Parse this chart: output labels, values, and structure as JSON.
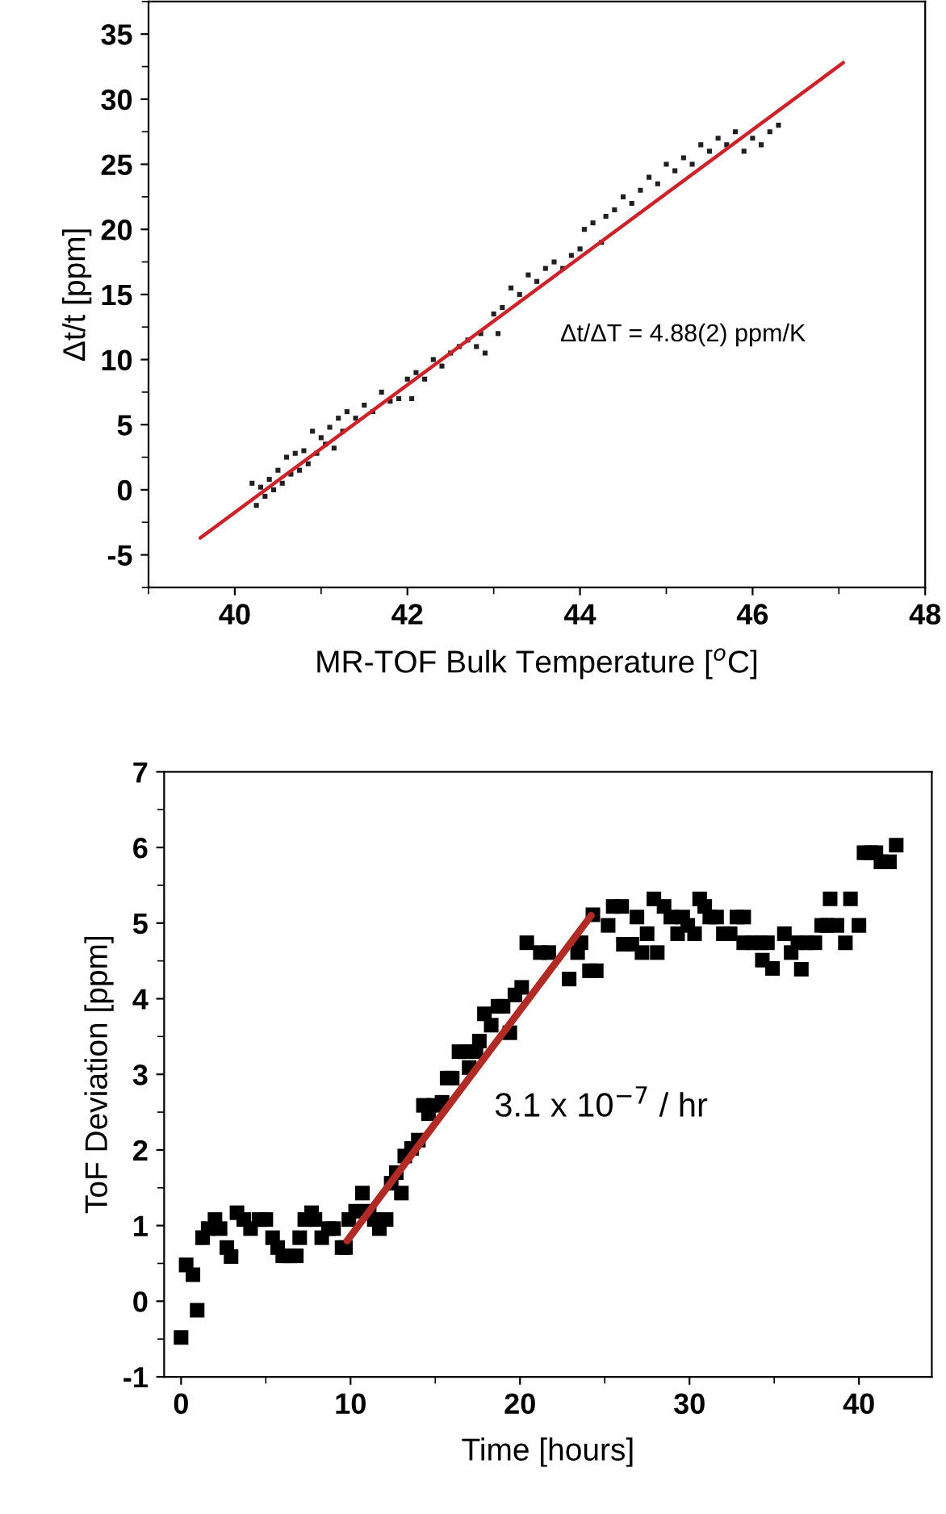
{
  "chart_data": [
    {
      "type": "scatter",
      "xlabel": "MR-TOF Bulk Temperature [$^{o}$C]",
      "ylabel": "Δt/t [ppm]",
      "xlim": [
        39,
        48
      ],
      "ylim": [
        -7.5,
        37.5
      ],
      "xticks": [
        40,
        42,
        44,
        46,
        48
      ],
      "yticks": [
        -5,
        0,
        5,
        10,
        15,
        20,
        25,
        30,
        35
      ],
      "grid": false,
      "annotations": [
        "Δt/ΔT = 4.88(2) ppm/K"
      ],
      "series": [
        {
          "marker": "square",
          "color": "#231f20",
          "x": [
            40.2,
            40.25,
            40.3,
            40.35,
            40.4,
            40.45,
            40.5,
            40.55,
            40.6,
            40.65,
            40.7,
            40.75,
            40.8,
            40.85,
            40.9,
            40.95,
            41.0,
            41.05,
            41.1,
            41.15,
            41.2,
            41.25,
            41.3,
            41.4,
            41.5,
            41.6,
            41.7,
            41.8,
            41.9,
            42.0,
            42.05,
            42.1,
            42.2,
            42.3,
            42.4,
            42.5,
            42.6,
            42.7,
            42.8,
            42.85,
            42.9,
            43.0,
            43.05,
            43.1,
            43.2,
            43.3,
            43.4,
            43.5,
            43.6,
            43.7,
            43.8,
            43.9,
            44.0,
            44.05,
            44.15,
            44.25,
            44.3,
            44.4,
            44.5,
            44.6,
            44.7,
            44.8,
            44.9,
            45.0,
            45.1,
            45.2,
            45.3,
            45.4,
            45.5,
            45.6,
            45.7,
            45.8,
            45.9,
            46.0,
            46.1,
            46.2,
            46.3
          ],
          "values": [
            0.5,
            -1.2,
            0.2,
            -0.5,
            0.8,
            0.0,
            1.5,
            0.5,
            2.5,
            1.2,
            2.8,
            1.5,
            3.0,
            2.0,
            4.5,
            2.8,
            4.0,
            3.5,
            4.8,
            3.2,
            5.5,
            4.5,
            6.0,
            5.5,
            6.5,
            6.0,
            7.5,
            6.8,
            7.0,
            8.5,
            7.0,
            9.0,
            8.5,
            10.0,
            9.5,
            10.5,
            11.0,
            11.5,
            11.0,
            12.0,
            10.5,
            13.5,
            12.0,
            14.0,
            15.5,
            15.0,
            16.5,
            16.0,
            17.0,
            17.5,
            17.0,
            18.0,
            18.5,
            20.0,
            20.5,
            19.0,
            21.0,
            21.5,
            22.5,
            22.0,
            23.0,
            24.0,
            23.5,
            25.0,
            24.5,
            25.5,
            25.0,
            26.5,
            26.0,
            27.0,
            26.5,
            27.5,
            26.0,
            27.0,
            26.5,
            27.5,
            28.0
          ]
        },
        {
          "type": "line",
          "marker": "none",
          "line_style": "solid",
          "color": "#cc2229",
          "x": [
            39.6,
            47.05
          ],
          "values": [
            -3.7,
            32.8
          ]
        }
      ]
    },
    {
      "type": "scatter",
      "xlabel": "Time [hours]",
      "ylabel": "ToF Deviation [ppm]",
      "xlim": [
        -1,
        44.3
      ],
      "ylim": [
        -1,
        7
      ],
      "xticks": [
        0,
        10,
        20,
        30,
        40
      ],
      "yticks": [
        -1,
        0,
        1,
        2,
        3,
        4,
        5,
        6,
        7
      ],
      "grid": false,
      "annotations": [
        "3.1 x 10$^{−7}$ / hr"
      ],
      "series": [
        {
          "marker": "square",
          "color": "#000000",
          "x": [
            0,
            0.3,
            0.7,
            0.95,
            1.27,
            1.6,
            2.0,
            2.3,
            2.7,
            2.95,
            3.3,
            3.7,
            4.1,
            4.6,
            5.0,
            5.4,
            5.7,
            6.0,
            6.4,
            6.8,
            7.0,
            7.3,
            7.7,
            7.9,
            8.3,
            8.7,
            9.0,
            9.5,
            9.7,
            9.9,
            10.3,
            10.7,
            11.1,
            11.4,
            11.7,
            12.1,
            12.4,
            12.7,
            13.0,
            13.2,
            13.6,
            14.0,
            14.3,
            14.6,
            14.9,
            15.4,
            15.7,
            16.0,
            16.4,
            16.8,
            17.0,
            17.4,
            17.6,
            17.9,
            18.3,
            18.7,
            19.0,
            19.4,
            19.7,
            20.1,
            20.4,
            21.2,
            21.7,
            22.9,
            23.4,
            23.6,
            24.1,
            24.3,
            24.5,
            25.2,
            25.5,
            26.0,
            26.1,
            26.6,
            26.9,
            27.2,
            27.5,
            27.9,
            28.1,
            28.5,
            28.9,
            29.3,
            29.6,
            29.9,
            30.3,
            30.6,
            30.9,
            31.2,
            31.6,
            32.0,
            32.4,
            32.8,
            33.2,
            33.2,
            33.7,
            34.2,
            34.3,
            34.6,
            34.9,
            35.6,
            36.0,
            36.4,
            36.6,
            36.9,
            37.4,
            37.8,
            38.1,
            38.3,
            38.7,
            39.2,
            39.5,
            40.0,
            40.3,
            40.7,
            41.0,
            41.3,
            41.8,
            42.2
          ],
          "values": [
            -0.48,
            0.48,
            0.35,
            -0.12,
            0.84,
            0.96,
            1.08,
            0.96,
            0.71,
            0.59,
            1.17,
            1.08,
            0.96,
            1.08,
            1.08,
            0.84,
            0.71,
            0.6,
            0.6,
            0.6,
            0.84,
            1.08,
            1.17,
            1.08,
            0.84,
            0.96,
            0.96,
            0.71,
            0.71,
            1.08,
            1.19,
            1.43,
            1.19,
            1.08,
            0.96,
            1.08,
            1.56,
            1.7,
            1.43,
            1.92,
            2.02,
            2.13,
            2.59,
            2.48,
            2.59,
            2.63,
            2.95,
            2.95,
            3.3,
            3.3,
            3.09,
            3.3,
            3.44,
            3.8,
            3.65,
            3.9,
            3.9,
            3.55,
            4.05,
            4.15,
            4.74,
            4.61,
            4.61,
            4.26,
            4.61,
            4.74,
            4.37,
            5.11,
            4.37,
            4.97,
            5.22,
            5.22,
            4.72,
            4.72,
            5.08,
            4.61,
            4.86,
            5.32,
            4.61,
            5.22,
            5.08,
            4.86,
            5.08,
            4.97,
            4.86,
            5.32,
            5.22,
            5.08,
            5.08,
            4.86,
            4.86,
            5.08,
            5.08,
            4.74,
            4.74,
            4.74,
            4.51,
            4.74,
            4.4,
            4.86,
            4.61,
            4.74,
            4.39,
            4.74,
            4.74,
            4.97,
            4.97,
            5.32,
            4.97,
            4.74,
            5.32,
            4.97,
            5.93,
            5.93,
            5.93,
            5.81,
            5.81,
            6.03
          ]
        },
        {
          "type": "line",
          "marker": "none",
          "line_style": "solid",
          "color": "#b02a26",
          "x": [
            9.8,
            24.2
          ],
          "values": [
            0.8,
            5.1
          ]
        }
      ]
    }
  ]
}
